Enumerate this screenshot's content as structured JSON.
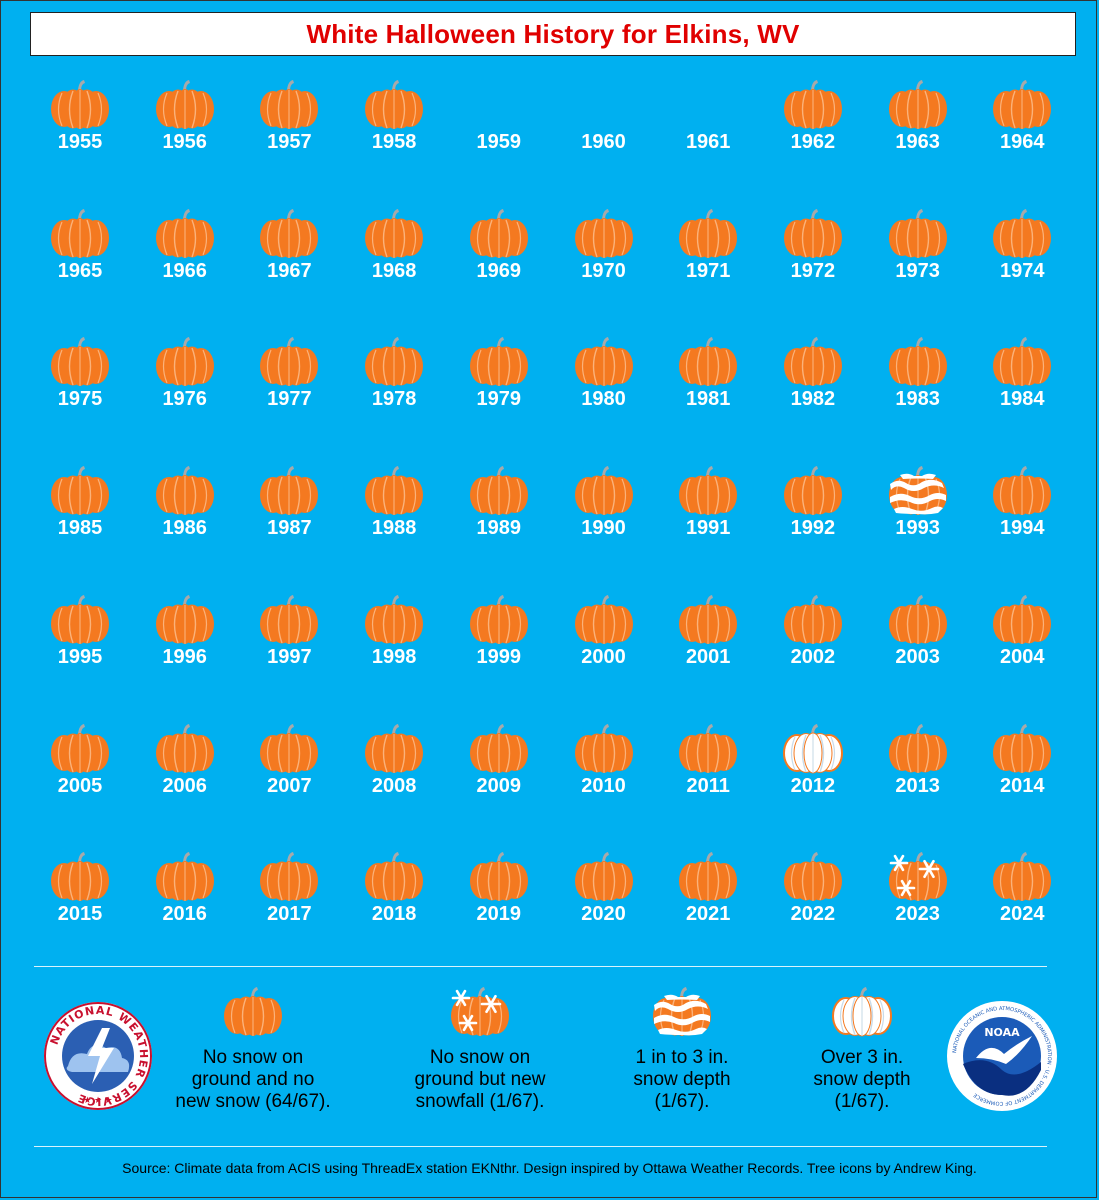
{
  "title": "White Halloween History for Elkins, WV",
  "colors": {
    "background": "#00b0f0",
    "title": "#e00000",
    "pumpkin": "#f47920",
    "pumpkin_ribs": "#fbb27a",
    "stem": "#a9a9a9",
    "snow": "#ffffff"
  },
  "chart_data": {
    "type": "table",
    "title": "White Halloween History for Elkins, WV",
    "categories_legend": {
      "none": "No snow on ground and no new snow (64/67).",
      "snowfall": "No snow on ground but new snowfall (1/67).",
      "depth_1_3": "1 in to 3 in. snow depth (1/67).",
      "depth_over_3": "Over 3 in. snow depth (1/67)."
    },
    "years": [
      {
        "year": "1955",
        "status": "none"
      },
      {
        "year": "1956",
        "status": "none"
      },
      {
        "year": "1957",
        "status": "none"
      },
      {
        "year": "1958",
        "status": "none"
      },
      {
        "year": "1959",
        "status": "missing"
      },
      {
        "year": "1960",
        "status": "missing"
      },
      {
        "year": "1961",
        "status": "missing"
      },
      {
        "year": "1962",
        "status": "none"
      },
      {
        "year": "1963",
        "status": "none"
      },
      {
        "year": "1964",
        "status": "none"
      },
      {
        "year": "1965",
        "status": "none"
      },
      {
        "year": "1966",
        "status": "none"
      },
      {
        "year": "1967",
        "status": "none"
      },
      {
        "year": "1968",
        "status": "none"
      },
      {
        "year": "1969",
        "status": "none"
      },
      {
        "year": "1970",
        "status": "none"
      },
      {
        "year": "1971",
        "status": "none"
      },
      {
        "year": "1972",
        "status": "none"
      },
      {
        "year": "1973",
        "status": "none"
      },
      {
        "year": "1974",
        "status": "none"
      },
      {
        "year": "1975",
        "status": "none"
      },
      {
        "year": "1976",
        "status": "none"
      },
      {
        "year": "1977",
        "status": "none"
      },
      {
        "year": "1978",
        "status": "none"
      },
      {
        "year": "1979",
        "status": "none"
      },
      {
        "year": "1980",
        "status": "none"
      },
      {
        "year": "1981",
        "status": "none"
      },
      {
        "year": "1982",
        "status": "none"
      },
      {
        "year": "1983",
        "status": "none"
      },
      {
        "year": "1984",
        "status": "none"
      },
      {
        "year": "1985",
        "status": "none"
      },
      {
        "year": "1986",
        "status": "none"
      },
      {
        "year": "1987",
        "status": "none"
      },
      {
        "year": "1988",
        "status": "none"
      },
      {
        "year": "1989",
        "status": "none"
      },
      {
        "year": "1990",
        "status": "none"
      },
      {
        "year": "1991",
        "status": "none"
      },
      {
        "year": "1992",
        "status": "none"
      },
      {
        "year": "1993",
        "status": "depth_1_3"
      },
      {
        "year": "1994",
        "status": "none"
      },
      {
        "year": "1995",
        "status": "none"
      },
      {
        "year": "1996",
        "status": "none"
      },
      {
        "year": "1997",
        "status": "none"
      },
      {
        "year": "1998",
        "status": "none"
      },
      {
        "year": "1999",
        "status": "none"
      },
      {
        "year": "2000",
        "status": "none"
      },
      {
        "year": "2001",
        "status": "none"
      },
      {
        "year": "2002",
        "status": "none"
      },
      {
        "year": "2003",
        "status": "none"
      },
      {
        "year": "2004",
        "status": "none"
      },
      {
        "year": "2005",
        "status": "none"
      },
      {
        "year": "2006",
        "status": "none"
      },
      {
        "year": "2007",
        "status": "none"
      },
      {
        "year": "2008",
        "status": "none"
      },
      {
        "year": "2009",
        "status": "none"
      },
      {
        "year": "2010",
        "status": "none"
      },
      {
        "year": "2011",
        "status": "none"
      },
      {
        "year": "2012",
        "status": "depth_over_3"
      },
      {
        "year": "2013",
        "status": "none"
      },
      {
        "year": "2014",
        "status": "none"
      },
      {
        "year": "2015",
        "status": "none"
      },
      {
        "year": "2016",
        "status": "none"
      },
      {
        "year": "2017",
        "status": "none"
      },
      {
        "year": "2018",
        "status": "none"
      },
      {
        "year": "2019",
        "status": "none"
      },
      {
        "year": "2020",
        "status": "none"
      },
      {
        "year": "2021",
        "status": "none"
      },
      {
        "year": "2022",
        "status": "none"
      },
      {
        "year": "2023",
        "status": "snowfall"
      },
      {
        "year": "2024",
        "status": "none"
      }
    ]
  },
  "legend": {
    "none": [
      "No snow on",
      "ground and no",
      "new snow (64/67)."
    ],
    "snowfall": [
      "No snow on",
      "ground but new",
      "snowfall (1/67)."
    ],
    "depth_1_3": [
      "1 in to 3 in.",
      "snow depth",
      "(1/67)."
    ],
    "depth_over_3": [
      "Over 3 in.",
      "snow depth",
      "(1/67)."
    ]
  },
  "logos": {
    "nws": {
      "text": "NATIONAL WEATHER SERVICE",
      "icon": "nws-logo"
    },
    "noaa": {
      "text": "NOAA",
      "ring_text": "NATIONAL OCEANIC AND ATMOSPHERIC ADMINISTRATION · U.S. DEPARTMENT OF COMMERCE",
      "icon": "noaa-logo"
    }
  },
  "source": "Source: Climate data from ACIS using ThreadEx station EKNthr. Design inspired by Ottawa Weather Records. Tree icons by Andrew King."
}
